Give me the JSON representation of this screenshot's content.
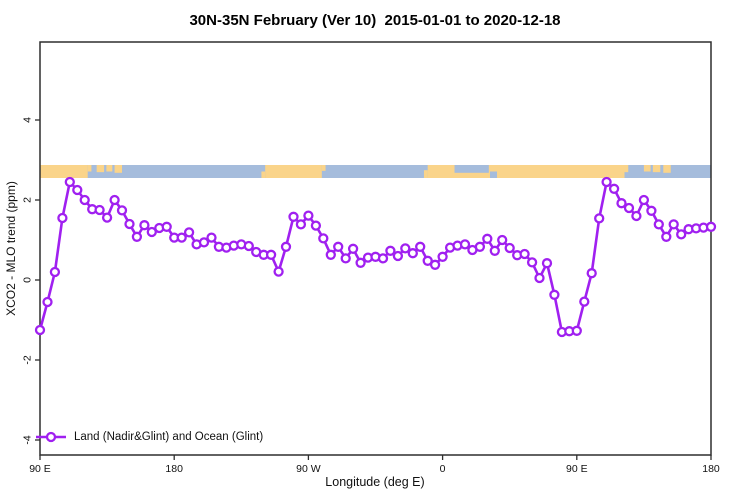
{
  "chart_data": {
    "type": "line",
    "title": "30N-35N February (Ver 10)  2015-01-01 to 2020-12-18",
    "xlabel": "Longitude (deg E)",
    "ylabel": "XCO2 - MLO trend (ppm)",
    "grid": "off",
    "x_axis": {
      "range_deg": [
        90,
        540
      ],
      "tick_degrees": [
        90,
        180,
        270,
        360,
        450,
        540
      ],
      "tick_labels": [
        "90 E",
        "180",
        "90 W",
        "0",
        "90 E",
        "180"
      ]
    },
    "y_axis": {
      "ticks": [
        -4,
        -2,
        0,
        2,
        4
      ],
      "tick_labels": [
        "-4",
        "-2",
        "0",
        "2",
        "4"
      ],
      "range": [
        -4.4,
        5.95
      ]
    },
    "legend": {
      "position": "bottom-left",
      "entries": [
        "Land (Nadir&Glint) and Ocean (Glint)"
      ]
    },
    "series": [
      {
        "name": "Land (Nadir&Glint) and Ocean (Glint)",
        "color": "#A020F0",
        "marker": "open-circle",
        "x_start_deg": 90,
        "x_step_deg": 5,
        "values": [
          -1.25,
          -0.55,
          0.2,
          1.55,
          2.45,
          2.25,
          2.0,
          1.77,
          1.75,
          1.56,
          2.0,
          1.74,
          1.4,
          1.08,
          1.37,
          1.2,
          1.3,
          1.33,
          1.06,
          1.06,
          1.19,
          0.89,
          0.94,
          1.06,
          0.83,
          0.81,
          0.86,
          0.89,
          0.85,
          0.7,
          0.63,
          0.63,
          0.21,
          0.83,
          1.58,
          1.39,
          1.61,
          1.36,
          1.04,
          0.63,
          0.83,
          0.54,
          0.78,
          0.43,
          0.56,
          0.58,
          0.54,
          0.73,
          0.6,
          0.79,
          0.67,
          0.83,
          0.48,
          0.38,
          0.58,
          0.81,
          0.86,
          0.89,
          0.75,
          0.83,
          1.03,
          0.73,
          1.0,
          0.8,
          0.62,
          0.65,
          0.44,
          0.05,
          0.42,
          -0.37,
          -1.3,
          -1.28,
          -1.27,
          -0.54,
          0.17,
          1.54,
          2.45,
          2.28,
          1.92,
          1.8,
          1.6,
          2.0,
          1.73,
          1.39,
          1.08,
          1.39,
          1.14,
          1.27,
          1.29,
          1.31,
          1.33
        ]
      }
    ],
    "map_strip": {
      "description": "30N-35N land/ocean band drawn across the plot",
      "y_center_ppm": 2.72,
      "ocean_color": "#A5BCDC",
      "land_color": "#FAD48A",
      "land_segments_deg": [
        [
          90,
          122
        ],
        [
          241,
          279
        ],
        [
          350,
          482
        ]
      ],
      "patches": [
        {
          "deg": [
            122,
            124.5
          ],
          "frac": [
            0,
            0.5
          ],
          "type": "land"
        },
        {
          "deg": [
            128,
            133
          ],
          "frac": [
            0,
            0.55
          ],
          "type": "land"
        },
        {
          "deg": [
            134.5,
            138.5
          ],
          "frac": [
            0,
            0.5
          ],
          "type": "land"
        },
        {
          "deg": [
            140,
            145
          ],
          "frac": [
            0,
            0.6
          ],
          "type": "land"
        },
        {
          "deg": [
            238.5,
            241
          ],
          "frac": [
            0.5,
            1
          ],
          "type": "land"
        },
        {
          "deg": [
            279,
            281.5
          ],
          "frac": [
            0,
            0.45
          ],
          "type": "land"
        },
        {
          "deg": [
            347.5,
            350
          ],
          "frac": [
            0.4,
            1
          ],
          "type": "land"
        },
        {
          "deg": [
            368,
            391
          ],
          "frac": [
            0,
            0.6
          ],
          "type": "ocean"
        },
        {
          "deg": [
            391.8,
            396.5
          ],
          "frac": [
            0.5,
            1
          ],
          "type": "ocean"
        },
        {
          "deg": [
            482,
            484.5
          ],
          "frac": [
            0,
            0.55
          ],
          "type": "land"
        },
        {
          "deg": [
            495,
            499.5
          ],
          "frac": [
            0,
            0.5
          ],
          "type": "land"
        },
        {
          "deg": [
            501,
            506
          ],
          "frac": [
            0,
            0.55
          ],
          "type": "land"
        },
        {
          "deg": [
            508,
            513
          ],
          "frac": [
            0,
            0.6
          ],
          "type": "land"
        }
      ]
    }
  }
}
